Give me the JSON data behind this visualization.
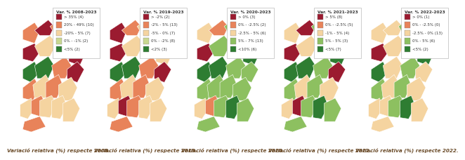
{
  "captions": [
    "Variació relativa (%) respecte 2008.",
    "Variació relativa (%) respecte 2019.",
    "Variació relativa (%) respecte 2020.",
    "Variació relativa (%) respecte 2021.",
    "Variació relativa (%) respecte 2022."
  ],
  "legends": [
    {
      "title": "Var. % 2008-2023",
      "entries": [
        {
          "label": "> 35% (4)",
          "color": "#9B1B30"
        },
        {
          "label": "20% - 49% (10)",
          "color": "#E8835A"
        },
        {
          "label": "-20% - 5% (7)",
          "color": "#F5D4A0"
        },
        {
          "label": "0% - -1% (2)",
          "color": "#C8D890"
        },
        {
          "label": "<5% (2)",
          "color": "#2E7D32"
        }
      ]
    },
    {
      "title": "Var. % 2019-2023",
      "entries": [
        {
          "label": "> -2% (2)",
          "color": "#9B1B30"
        },
        {
          "label": "-2% - 5% (13)",
          "color": "#E8835A"
        },
        {
          "label": "-5% - 0% (7)",
          "color": "#F5D4A0"
        },
        {
          "label": "0% - -2% (8)",
          "color": "#C8D890"
        },
        {
          "label": "<2% (3)",
          "color": "#2E7D32"
        }
      ]
    },
    {
      "title": "Var. % 2020-2023",
      "entries": [
        {
          "label": "> 0% (3)",
          "color": "#9B1B30"
        },
        {
          "label": "0% - -2.5% (2)",
          "color": "#E8835A"
        },
        {
          "label": "-2.5% - 5% (6)",
          "color": "#F5D4A0"
        },
        {
          "label": "5% - 7% (13)",
          "color": "#8DC060"
        },
        {
          "label": "<10% (6)",
          "color": "#2E7D32"
        }
      ]
    },
    {
      "title": "Var. % 2021-2023",
      "entries": [
        {
          "label": "> 5% (8)",
          "color": "#9B1B30"
        },
        {
          "label": "0% - -2.5% (5)",
          "color": "#E8835A"
        },
        {
          "label": "-1% - 5% (4)",
          "color": "#F5D4A0"
        },
        {
          "label": "5% - 5% (3)",
          "color": "#8DC060"
        },
        {
          "label": "<5% (7)",
          "color": "#2E7D32"
        }
      ]
    },
    {
      "title": "Var. % 2022-2023",
      "entries": [
        {
          "label": "> 0% (1)",
          "color": "#9B1B30"
        },
        {
          "label": "0% - -2.5% (0)",
          "color": "#E8835A"
        },
        {
          "label": "-2.5% - 0% (13)",
          "color": "#F5D4A0"
        },
        {
          "label": "0% - 5% (6)",
          "color": "#8DC060"
        },
        {
          "label": "<5% (2)",
          "color": "#2E7D32"
        }
      ]
    }
  ],
  "map_bg": "#B8B8B8",
  "panel_bg": "#FFFFFF",
  "caption_color": "#6B4C2A",
  "caption_fontsize": 5.2,
  "legend_fontsize": 4.0,
  "legend_title_fontsize": 4.2,
  "n_maps": 5,
  "district_colors": [
    [
      "#E8835A",
      "#9B1B30",
      "#E8835A",
      "#F5D4A0",
      "#E8835A",
      "#9B1B30",
      "#F5D4A0",
      "#E8835A",
      "#9B1B30",
      "#2E7D32",
      "#2E7D32",
      "#E8835A",
      "#9B1B30",
      "#E8835A",
      "#F5D4A0",
      "#E8835A",
      "#F5D4A0",
      "#F5D4A0",
      "#E8835A",
      "#F5D4A0",
      "#F5D4A0",
      "#F5D4A0",
      "#E8835A"
    ],
    [
      "#9B1B30",
      "#E8835A",
      "#F5D4A0",
      "#E8835A",
      "#F5D4A0",
      "#9B1B30",
      "#F5D4A0",
      "#E8835A",
      "#F5D4A0",
      "#2E7D32",
      "#2E7D32",
      "#E8835A",
      "#9B1B30",
      "#E8835A",
      "#F5D4A0",
      "#E8835A",
      "#F5D4A0",
      "#F5D4A0",
      "#9B1B30",
      "#E8835A",
      "#F5D4A0",
      "#F5D4A0",
      "#E8835A"
    ],
    [
      "#F5D4A0",
      "#E8835A",
      "#8DC060",
      "#8DC060",
      "#8DC060",
      "#9B1B30",
      "#8DC060",
      "#8DC060",
      "#2E7D32",
      "#2E7D32",
      "#2E7D32",
      "#8DC060",
      "#8DC060",
      "#8DC060",
      "#8DC060",
      "#8DC060",
      "#8DC060",
      "#F5D4A0",
      "#E8835A",
      "#8DC060",
      "#2E7D32",
      "#8DC060",
      "#8DC060"
    ],
    [
      "#F5D4A0",
      "#9B1B30",
      "#8DC060",
      "#8DC060",
      "#8DC060",
      "#9B1B30",
      "#F5D4A0",
      "#8DC060",
      "#2E7D32",
      "#2E7D32",
      "#2E7D32",
      "#8DC060",
      "#9B1B30",
      "#8DC060",
      "#F5D4A0",
      "#8DC060",
      "#F5D4A0",
      "#F5D4A0",
      "#9B1B30",
      "#8DC060",
      "#2E7D32",
      "#8DC060",
      "#8DC060"
    ],
    [
      "#F5D4A0",
      "#F5D4A0",
      "#8DC060",
      "#F5D4A0",
      "#8DC060",
      "#9B1B30",
      "#F5D4A0",
      "#8DC060",
      "#2E7D32",
      "#2E7D32",
      "#F5D4A0",
      "#8DC060",
      "#F5D4A0",
      "#8DC060",
      "#F5D4A0",
      "#8DC060",
      "#F5D4A0",
      "#F5D4A0",
      "#F5D4A0",
      "#8DC060",
      "#2E7D32",
      "#F5D4A0",
      "#F5D4A0"
    ]
  ]
}
